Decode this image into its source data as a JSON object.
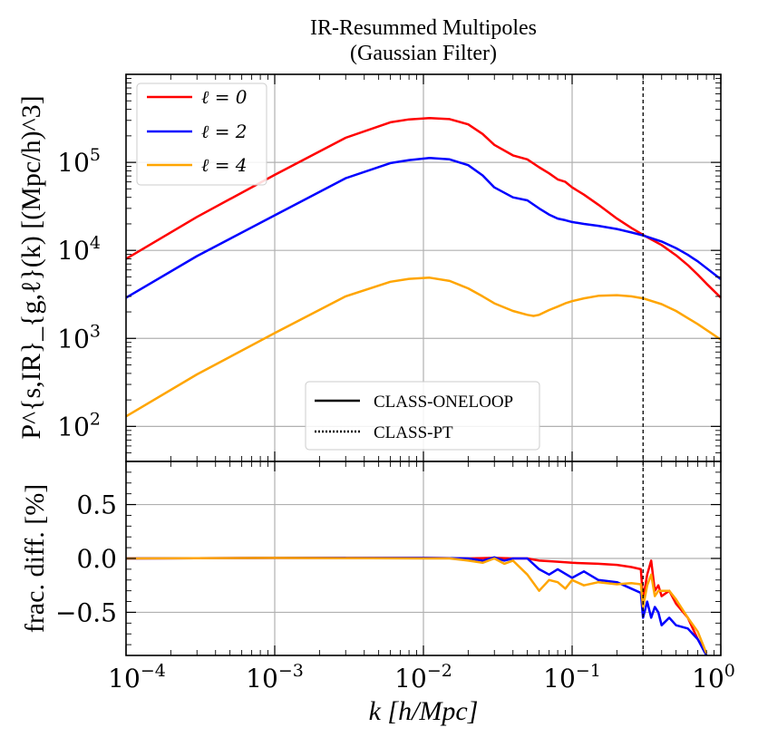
{
  "chart_data": [
    {
      "panel": "top",
      "type": "line",
      "title_lines": [
        "IR-Resummed Multipoles",
        "(Gaussian Filter)"
      ],
      "xscale": "log",
      "yscale": "log",
      "xlim": [
        0.0001,
        1
      ],
      "ylim": [
        40,
        1000000
      ],
      "ylabel": "P^{s,IR}_{g,ℓ}(k) [(Mpc/h)^3]",
      "yticks": [
        100,
        1000,
        10000,
        100000
      ],
      "ytick_labels": [
        {
          "base": "10",
          "exp": "2"
        },
        {
          "base": "10",
          "exp": "3"
        },
        {
          "base": "10",
          "exp": "4"
        },
        {
          "base": "10",
          "exp": "5"
        }
      ],
      "vline_x": 0.3,
      "legend_series_position": "top-left",
      "legend_style_position": "lower-center",
      "series": [
        {
          "name": "ℓ = 0",
          "color": "#ff0000",
          "x": [
            0.0001,
            0.0003,
            0.001,
            0.003,
            0.006,
            0.008,
            0.011,
            0.015,
            0.02,
            0.025,
            0.03,
            0.04,
            0.05,
            0.06,
            0.07,
            0.08,
            0.09,
            0.1,
            0.12,
            0.15,
            0.2,
            0.25,
            0.3,
            0.4,
            0.5,
            0.6,
            0.7,
            0.8,
            1.0
          ],
          "y": [
            8000,
            24000,
            72000,
            190000,
            285000,
            308000,
            318000,
            310000,
            270000,
            210000,
            158000,
            120000,
            108000,
            88000,
            75000,
            64000,
            60000,
            52000,
            43000,
            33000,
            23000,
            18000,
            15000,
            11500,
            8800,
            6800,
            5300,
            4200,
            2900
          ]
        },
        {
          "name": "ℓ = 2",
          "color": "#0000ff",
          "x": [
            0.0001,
            0.0003,
            0.001,
            0.003,
            0.006,
            0.008,
            0.011,
            0.015,
            0.02,
            0.025,
            0.03,
            0.04,
            0.05,
            0.06,
            0.07,
            0.08,
            0.09,
            0.1,
            0.12,
            0.15,
            0.2,
            0.25,
            0.3,
            0.4,
            0.5,
            0.6,
            0.7,
            0.8,
            1.0
          ],
          "y": [
            2900,
            8600,
            25000,
            66000,
            98000,
            106000,
            112000,
            108000,
            93000,
            71000,
            52000,
            40000,
            37000,
            30000,
            25500,
            23000,
            22000,
            21000,
            20000,
            19000,
            17500,
            16000,
            14800,
            12600,
            10600,
            8900,
            7500,
            6300,
            4700
          ]
        },
        {
          "name": "ℓ = 4",
          "color": "#ffa500",
          "x": [
            0.0001,
            0.0003,
            0.001,
            0.003,
            0.006,
            0.008,
            0.011,
            0.015,
            0.02,
            0.025,
            0.03,
            0.04,
            0.05,
            0.055,
            0.06,
            0.07,
            0.08,
            0.09,
            0.1,
            0.12,
            0.15,
            0.2,
            0.25,
            0.3,
            0.4,
            0.5,
            0.6,
            0.7,
            0.8,
            1.0
          ],
          "y": [
            130,
            390,
            1150,
            3000,
            4400,
            4750,
            4900,
            4500,
            3700,
            3000,
            2500,
            2050,
            1850,
            1800,
            1850,
            2100,
            2300,
            2500,
            2650,
            2850,
            3050,
            3100,
            3000,
            2850,
            2450,
            2050,
            1700,
            1450,
            1250,
            970
          ]
        }
      ],
      "style_legend": [
        {
          "label": "CLASS-ONELOOP",
          "line": "solid"
        },
        {
          "label": "CLASS-PT",
          "line": "dotted"
        }
      ]
    },
    {
      "panel": "bottom",
      "type": "line",
      "xscale": "log",
      "yscale": "linear",
      "xlim": [
        0.0001,
        1
      ],
      "ylim": [
        -0.9,
        0.9
      ],
      "xlabel": "k [h/Mpc]",
      "ylabel": "frac. diff. [%]",
      "yticks": [
        -0.5,
        0.0,
        0.5
      ],
      "ytick_labels": [
        "−0.5",
        "0.0",
        "0.5"
      ],
      "xticks": [
        0.0001,
        0.001,
        0.01,
        0.1,
        1
      ],
      "xtick_labels": [
        {
          "base": "10",
          "exp": "−4"
        },
        {
          "base": "10",
          "exp": "−3"
        },
        {
          "base": "10",
          "exp": "−2"
        },
        {
          "base": "10",
          "exp": "−1"
        },
        {
          "base": "10",
          "exp": "0"
        }
      ],
      "vline_x": 0.3,
      "series": [
        {
          "name": "ℓ = 0",
          "color": "#ff0000",
          "x": [
            0.0001,
            0.001,
            0.01,
            0.02,
            0.03,
            0.04,
            0.05,
            0.06,
            0.08,
            0.1,
            0.15,
            0.2,
            0.25,
            0.29,
            0.3,
            0.32,
            0.34,
            0.36,
            0.38,
            0.4,
            0.45,
            0.5,
            0.6,
            0.7,
            0.8
          ],
          "y": [
            0.0,
            0.005,
            0.005,
            0.0,
            0.005,
            0.0,
            0.0,
            -0.02,
            -0.03,
            -0.04,
            -0.05,
            -0.06,
            -0.08,
            -0.1,
            -0.38,
            -0.15,
            -0.02,
            -0.3,
            -0.25,
            -0.35,
            -0.3,
            -0.42,
            -0.55,
            -0.75,
            -0.88
          ]
        },
        {
          "name": "ℓ = 2",
          "color": "#0000ff",
          "x": [
            0.0001,
            0.001,
            0.01,
            0.02,
            0.025,
            0.03,
            0.035,
            0.04,
            0.05,
            0.06,
            0.07,
            0.08,
            0.1,
            0.12,
            0.15,
            0.2,
            0.25,
            0.29,
            0.3,
            0.32,
            0.34,
            0.36,
            0.38,
            0.4,
            0.45,
            0.5,
            0.6,
            0.7,
            0.8
          ],
          "y": [
            0.0,
            0.005,
            0.005,
            0.0,
            -0.02,
            0.01,
            -0.02,
            0.0,
            0.0,
            -0.1,
            -0.15,
            -0.1,
            -0.18,
            -0.12,
            -0.2,
            -0.22,
            -0.28,
            -0.32,
            -0.55,
            -0.4,
            -0.55,
            -0.45,
            -0.5,
            -0.62,
            -0.55,
            -0.62,
            -0.65,
            -0.75,
            -0.9
          ]
        },
        {
          "name": "ℓ = 4",
          "color": "#ffa500",
          "x": [
            0.0001,
            0.001,
            0.01,
            0.015,
            0.02,
            0.025,
            0.03,
            0.035,
            0.04,
            0.05,
            0.06,
            0.07,
            0.08,
            0.09,
            0.1,
            0.12,
            0.15,
            0.2,
            0.25,
            0.29,
            0.3,
            0.32,
            0.34,
            0.36,
            0.38,
            0.4,
            0.45,
            0.5,
            0.6,
            0.7,
            0.8
          ],
          "y": [
            0.0,
            0.005,
            0.0,
            0.0,
            -0.02,
            -0.04,
            0.0,
            -0.05,
            -0.02,
            -0.15,
            -0.3,
            -0.2,
            -0.22,
            -0.28,
            -0.2,
            -0.25,
            -0.22,
            -0.24,
            -0.23,
            -0.24,
            -0.45,
            -0.25,
            -0.15,
            -0.35,
            -0.3,
            -0.3,
            -0.3,
            -0.38,
            -0.55,
            -0.68,
            -0.88
          ]
        }
      ]
    }
  ]
}
